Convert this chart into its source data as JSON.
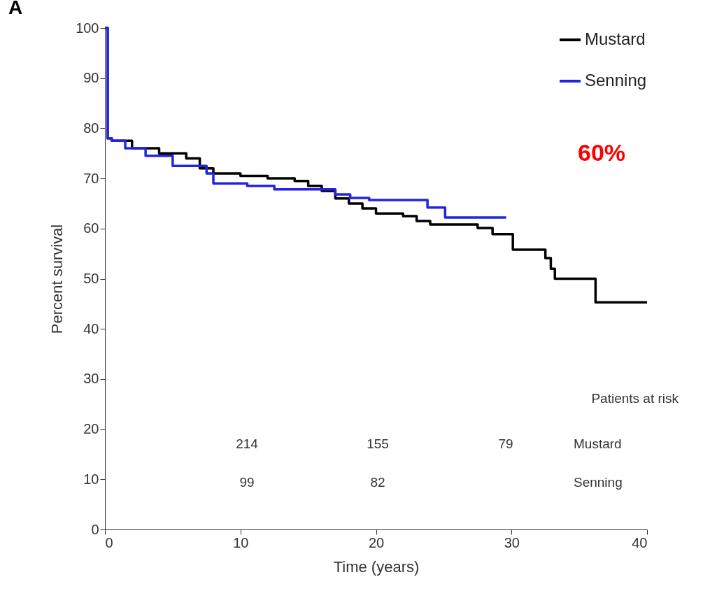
{
  "chart_data": {
    "type": "step",
    "title": "A",
    "xlabel": "Time (years)",
    "ylabel": "Percent survival",
    "xlim": [
      0,
      40
    ],
    "xticks": [
      0,
      10,
      20,
      30,
      40
    ],
    "ylim": [
      0,
      100
    ],
    "yticks": [
      0,
      10,
      20,
      30,
      40,
      50,
      60,
      70,
      80,
      90,
      100
    ],
    "grid": false,
    "legend": "top right",
    "series": [
      {
        "name": "Mustard",
        "color": "#000000",
        "x": [
          0,
          0.2,
          0.5,
          2,
          4,
          6,
          7,
          8,
          10,
          12,
          14,
          15,
          16,
          17,
          18,
          19,
          20,
          22,
          23,
          24,
          27.5,
          28.6,
          30.1,
          32.5,
          32.9,
          33.2,
          36.2,
          40
        ],
        "values": [
          100,
          78,
          77.5,
          76,
          75,
          74,
          72,
          71,
          70.5,
          70,
          69.5,
          68.5,
          67.5,
          66,
          65,
          64,
          63,
          62.5,
          61.5,
          60.8,
          60.1,
          58.9,
          55.8,
          54.1,
          52,
          50,
          45.3,
          45.3
        ]
      },
      {
        "name": "Senning",
        "color": "#2424e0",
        "x": [
          0,
          0.2,
          0.5,
          1.5,
          3,
          5,
          7.5,
          8,
          10.5,
          12.5,
          16,
          17,
          18.1,
          19.5,
          23.8,
          25.1,
          29.6
        ],
        "values": [
          100,
          78,
          77.5,
          76,
          74.5,
          72.5,
          71,
          69,
          68.5,
          67.8,
          67.8,
          66.8,
          66.1,
          65.7,
          64.2,
          62.2,
          62.2
        ]
      }
    ],
    "annotations": [
      "60%",
      "Patients at risk",
      "214",
      "155",
      "79",
      "Mustard",
      "99",
      "82",
      "Senning"
    ]
  }
}
